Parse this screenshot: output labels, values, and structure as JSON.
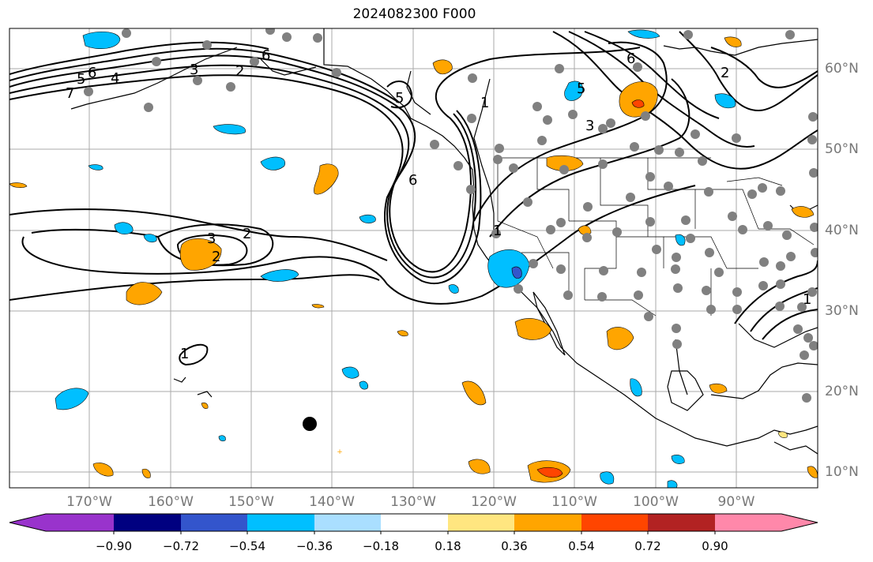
{
  "title": "2024082300 F000",
  "lat_labels": [
    "60°N",
    "50°N",
    "40°N",
    "30°N",
    "20°N",
    "10°N"
  ],
  "lon_labels": [
    "170°W",
    "160°W",
    "150°W",
    "140°W",
    "130°W",
    "120°W",
    "110°W",
    "100°W",
    "90°W"
  ],
  "contour_labels": [
    "5",
    "6",
    "4",
    "3",
    "2",
    "7",
    "6",
    "1",
    "6",
    "6",
    "5",
    "3",
    "2",
    "3",
    "2",
    "1",
    "1",
    "2",
    "1",
    "5"
  ],
  "colorbar": {
    "tick_labels": [
      "−0.90",
      "−0.72",
      "−0.54",
      "−0.36",
      "−0.18",
      "0.18",
      "0.36",
      "0.54",
      "0.72",
      "0.90"
    ],
    "colors": [
      "#9933cc",
      "#000080",
      "#3355cc",
      "#00bfff",
      "#aadfff",
      "#ffffff",
      "#ffe680",
      "#ffa500",
      "#ff4500",
      "#b22222",
      "#ff88aa"
    ]
  },
  "shading_colors": {
    "cyan": "#00bfff",
    "blue": "#3355cc",
    "orange": "#ffa500",
    "red": "#ff4500",
    "yellow": "#ffe680"
  }
}
